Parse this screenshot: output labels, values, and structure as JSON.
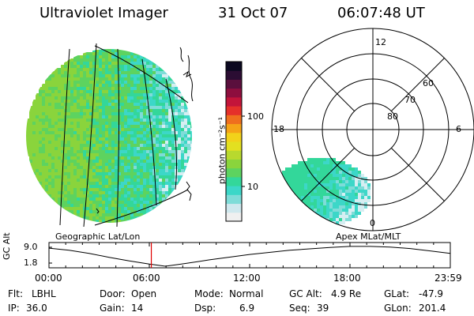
{
  "header": {
    "title": "Ultraviolet Imager",
    "date": "31 Oct 07",
    "time": "06:07:48 UT"
  },
  "colorbar": {
    "unit_label": "photon cm⁻²s⁻¹",
    "ticks": [
      "100",
      "10"
    ],
    "colors": [
      "#f0f0f0",
      "#cfe8ee",
      "#7fdcd8",
      "#3cd7c8",
      "#33d79a",
      "#5dd35f",
      "#8ad43c",
      "#b8d92e",
      "#e3e020",
      "#f2d21a",
      "#f5a417",
      "#ef6f1e",
      "#e5302a",
      "#c3143a",
      "#8e0e3e",
      "#5a0f3d",
      "#2b0d33",
      "#0b0820"
    ]
  },
  "polar": {
    "mlt_labels": [
      "12",
      "18",
      "6",
      "0"
    ],
    "lat_labels": [
      "60",
      "70",
      "80"
    ]
  },
  "left_map": {
    "label": "Geographic Lat/Lon"
  },
  "right_map": {
    "label": "Apex MLat/MLT"
  },
  "altitude_plot": {
    "ylabel": "GC Alt",
    "yticks": [
      "9.0",
      "1.8"
    ],
    "xticks": [
      "00:00",
      "06:00",
      "12:00",
      "18:00",
      "23:59"
    ],
    "current_time_fraction": 0.255,
    "current_marker_color": "#e00000"
  },
  "status": {
    "flt_label": "Flt:",
    "flt_value": "LBHL",
    "ip_label": "IP:",
    "ip_value": "36.0",
    "door_label": "Door:",
    "door_value": "Open",
    "gain_label": "Gain:",
    "gain_value": "14",
    "mode_label": "Mode:",
    "mode_value": "Normal",
    "dsp_label": "Dsp:",
    "dsp_value": "6.9",
    "gcalt_label": "GC Alt:",
    "gcalt_value": "4.9 Re",
    "seq_label": "Seq:",
    "seq_value": "39",
    "glat_label": "GLat:",
    "glat_value": "-47.9",
    "glon_label": "GLon:",
    "glon_value": "201.4"
  }
}
